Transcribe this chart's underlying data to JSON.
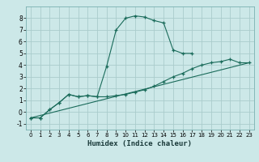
{
  "xlabel": "Humidex (Indice chaleur)",
  "bg_color": "#cce8e8",
  "grid_color": "#aacccc",
  "line_color": "#1a6b5a",
  "xlim": [
    -0.5,
    23.5
  ],
  "ylim": [
    -1.5,
    9.0
  ],
  "yticks": [
    -1,
    0,
    1,
    2,
    3,
    4,
    5,
    6,
    7,
    8
  ],
  "xticks": [
    0,
    1,
    2,
    3,
    4,
    5,
    6,
    7,
    8,
    9,
    10,
    11,
    12,
    13,
    14,
    15,
    16,
    17,
    18,
    19,
    20,
    21,
    22,
    23
  ],
  "line1_x": [
    0,
    1,
    2,
    3,
    4,
    5,
    6,
    7,
    8,
    9,
    10,
    11,
    12,
    13,
    14,
    15,
    16,
    17
  ],
  "line1_y": [
    -0.5,
    -0.5,
    0.2,
    0.8,
    1.5,
    1.3,
    1.4,
    1.3,
    3.9,
    7.0,
    8.0,
    8.2,
    8.1,
    7.8,
    7.6,
    5.3,
    5.0,
    5.0
  ],
  "line2_x": [
    0,
    1,
    2,
    3,
    4,
    5,
    6,
    7,
    8,
    9,
    10,
    11,
    12,
    13,
    14,
    15,
    16,
    17,
    18,
    19,
    20,
    21,
    22,
    23
  ],
  "line2_y": [
    -0.5,
    -0.5,
    0.2,
    0.8,
    1.5,
    1.3,
    1.4,
    1.3,
    1.3,
    1.4,
    1.5,
    1.7,
    1.9,
    2.2,
    2.6,
    3.0,
    3.3,
    3.7,
    4.0,
    4.2,
    4.3,
    4.5,
    4.2,
    4.2
  ],
  "line3_x": [
    0,
    23
  ],
  "line3_y": [
    -0.5,
    4.2
  ]
}
